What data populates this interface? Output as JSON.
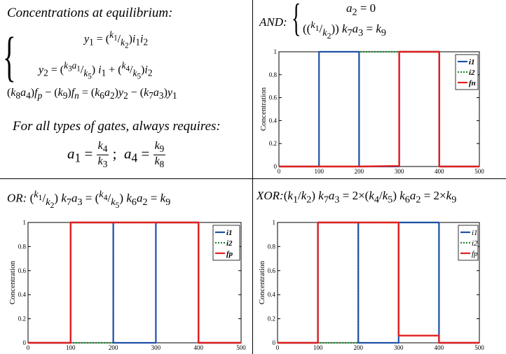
{
  "figure": {
    "tl_title": "Concentrations at equilibrium:",
    "tl_eq1": "y₁ = (k₁/k₂)i₁i₂",
    "tl_eq2": "y₂ = (k₃a₁/k₅) i₁ + (k₄/k₅)i₂",
    "tl_eq3": "(k₈a₄)fₚ − (k₉)fₙ = (k₆a₂)y₂ − (k₇a₃)y₁",
    "tl_note": "For all types of gates, always requires:",
    "tl_cond": "a₁ = k₄/k₃ ;  a₄ = k₉/k₈",
    "and_label": "AND:",
    "and_eq1": "a₂ = 0",
    "and_eq2": "(k₁/k₂) k₇a₃ = k₉",
    "or_formula": "OR: (k₁/k₂) k₇a₃ = (k₄/k₅) k₆a₂ = k₉",
    "xor_formula": "XOR: (k₁/k₂) k₇a₃ = 2×(k₄/k₅) k₆a₂ = 2×k₉"
  },
  "chart_data": [
    {
      "id": "and",
      "type": "line",
      "ylabel": "Concentration",
      "xlim": [
        0,
        500
      ],
      "ylim": [
        0,
        1
      ],
      "xticks": [
        "0",
        "100",
        "200",
        "300",
        "400",
        "500"
      ],
      "yticks": [
        "0",
        "0.2",
        "0.4",
        "0.6",
        "0.8",
        "1"
      ],
      "legend_position": "top-right",
      "colors": [
        "#2050a8",
        "#1e8a2e",
        "#e02020"
      ],
      "series": [
        {
          "name": "i1",
          "x": [
            0,
            100,
            100,
            200,
            200,
            300,
            300,
            400,
            400,
            500
          ],
          "values": [
            0,
            0,
            1,
            1,
            0,
            0,
            1,
            1,
            0,
            0
          ]
        },
        {
          "name": "i2",
          "x": [
            0,
            200,
            200,
            400,
            400,
            500
          ],
          "values": [
            0,
            0,
            1,
            1,
            0,
            0
          ]
        },
        {
          "name": "fn",
          "x": [
            0,
            200,
            300,
            300,
            400,
            400,
            500
          ],
          "values": [
            0,
            0,
            0.005,
            1,
            1,
            0,
            0
          ]
        }
      ]
    },
    {
      "id": "or",
      "type": "line",
      "ylabel": "Concentration",
      "xlim": [
        0,
        500
      ],
      "ylim": [
        0,
        1
      ],
      "xticks": [
        "0",
        "100",
        "200",
        "300",
        "400",
        "500"
      ],
      "yticks": [
        "0",
        "0.2",
        "0.4",
        "0.6",
        "0.8",
        "1"
      ],
      "legend_position": "top-right",
      "colors": [
        "#2050a8",
        "#1e8a2e",
        "#e02020"
      ],
      "series": [
        {
          "name": "i1",
          "x": [
            0,
            100,
            100,
            200,
            200,
            300,
            300,
            400,
            400,
            500
          ],
          "values": [
            0,
            0,
            1,
            1,
            0,
            0,
            1,
            1,
            0,
            0
          ]
        },
        {
          "name": "i2",
          "x": [
            0,
            200,
            200,
            400,
            400,
            500
          ],
          "values": [
            0,
            0,
            1,
            1,
            0,
            0
          ]
        },
        {
          "name": "fp",
          "x": [
            0,
            100,
            100,
            400,
            400,
            500
          ],
          "values": [
            0,
            0,
            1,
            1,
            0,
            0
          ]
        }
      ]
    },
    {
      "id": "xor",
      "type": "line",
      "ylabel": "Concentration",
      "xlim": [
        0,
        500
      ],
      "ylim": [
        0,
        1
      ],
      "xticks": [
        "0",
        "100",
        "200",
        "300",
        "400",
        "500"
      ],
      "yticks": [
        "0",
        "0.2",
        "0.4",
        "0.6",
        "0.8",
        "1"
      ],
      "legend_position": "top-right",
      "colors": [
        "#2050a8",
        "#1e8a2e",
        "#e02020"
      ],
      "series": [
        {
          "name": "i1",
          "x": [
            0,
            100,
            100,
            200,
            200,
            300,
            300,
            400,
            400,
            500
          ],
          "values": [
            0,
            0,
            1,
            1,
            0,
            0,
            1,
            1,
            0,
            0
          ]
        },
        {
          "name": "i2",
          "x": [
            0,
            200,
            200,
            400,
            400,
            500
          ],
          "values": [
            0,
            0,
            1,
            1,
            0,
            0
          ]
        },
        {
          "name": "fp",
          "x": [
            0,
            100,
            100,
            300,
            300,
            400,
            400,
            500
          ],
          "values": [
            0,
            0,
            1,
            1,
            0.06,
            0.06,
            0,
            0
          ]
        }
      ]
    }
  ]
}
